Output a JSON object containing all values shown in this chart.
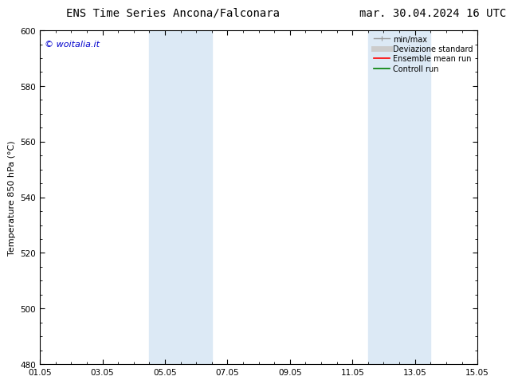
{
  "title_left": "ENS Time Series Ancona/Falconara",
  "title_right": "mar. 30.04.2024 16 UTC",
  "ylabel": "Temperature 850 hPa (°C)",
  "watermark": "© woitalia.it",
  "watermark_color": "#0000cc",
  "ylim": [
    480,
    600
  ],
  "yticks": [
    480,
    500,
    520,
    540,
    560,
    580,
    600
  ],
  "xtick_labels": [
    "01.05",
    "03.05",
    "05.05",
    "07.05",
    "09.05",
    "11.05",
    "13.05",
    "15.05"
  ],
  "xtick_positions": [
    0,
    2,
    4,
    6,
    8,
    10,
    12,
    14
  ],
  "x_total_days": 14,
  "shaded_bands": [
    {
      "x_start": 3.5,
      "x_end": 4.5,
      "x_start2": 4.5,
      "x_end2": 5.5
    },
    {
      "x_start": 10.5,
      "x_end": 11.5,
      "x_start2": 11.5,
      "x_end2": 12.5
    }
  ],
  "shade_color1": "#dce9f5",
  "shade_color2": "#dce9f5",
  "bg_color": "#ffffff",
  "legend_entries": [
    {
      "label": "min/max",
      "color": "#999999",
      "lw": 1.0
    },
    {
      "label": "Deviazione standard",
      "color": "#cccccc",
      "lw": 5
    },
    {
      "label": "Ensemble mean run",
      "color": "#ff0000",
      "lw": 1.2
    },
    {
      "label": "Controll run",
      "color": "#008000",
      "lw": 1.2
    }
  ],
  "title_fontsize": 10,
  "axis_fontsize": 8,
  "tick_fontsize": 7.5,
  "watermark_fontsize": 8,
  "legend_fontsize": 7
}
